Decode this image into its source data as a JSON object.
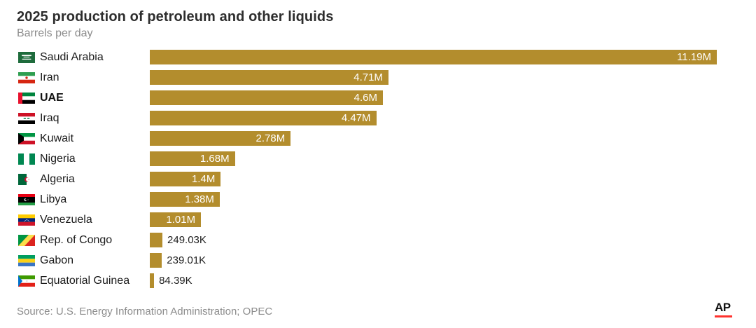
{
  "title": "2025 production of petroleum and other liquids",
  "subtitle": "Barrels per day",
  "source": "Source: U.S. Energy Information Administration; OPEC",
  "logo": {
    "text": "AP",
    "underline_color": "#FF322E"
  },
  "colors": {
    "bar": "#b38d2d",
    "value_label_inside": "#ffffff",
    "value_label_outside": "#1f1f1f",
    "title": "#2d2d2d",
    "subtitle": "#8c8c8c",
    "source": "#8c8c8c"
  },
  "chart_data": {
    "type": "bar",
    "orientation": "horizontal",
    "title": "2025 production of petroleum and other liquids",
    "xlabel": "Barrels per day",
    "ylabel": "",
    "xlim": [
      0,
      11190000
    ],
    "grid": false,
    "legend": false,
    "categories": [
      "Saudi Arabia",
      "Iran",
      "UAE",
      "Iraq",
      "Kuwait",
      "Nigeria",
      "Algeria",
      "Libya",
      "Venezuela",
      "Rep. of Congo",
      "Gabon",
      "Equatorial Guinea"
    ],
    "values": [
      11190000,
      4710000,
      4600000,
      4470000,
      2780000,
      1680000,
      1400000,
      1380000,
      1010000,
      249030,
      239010,
      84390
    ],
    "value_labels": [
      "11.19M",
      "4.71M",
      "4.6M",
      "4.47M",
      "2.78M",
      "1.68M",
      "1.4M",
      "1.38M",
      "1.01M",
      "249.03K",
      "239.01K",
      "84.39K"
    ],
    "emphasized_category": "UAE",
    "rows": [
      {
        "category": "Saudi Arabia",
        "flag": "saudi-arabia",
        "value": 11190000,
        "value_label": "11.19M",
        "emphasized": false
      },
      {
        "category": "Iran",
        "flag": "iran",
        "value": 4710000,
        "value_label": "4.71M",
        "emphasized": false
      },
      {
        "category": "UAE",
        "flag": "uae",
        "value": 4600000,
        "value_label": "4.6M",
        "emphasized": true
      },
      {
        "category": "Iraq",
        "flag": "iraq",
        "value": 4470000,
        "value_label": "4.47M",
        "emphasized": false
      },
      {
        "category": "Kuwait",
        "flag": "kuwait",
        "value": 2780000,
        "value_label": "2.78M",
        "emphasized": false
      },
      {
        "category": "Nigeria",
        "flag": "nigeria",
        "value": 1680000,
        "value_label": "1.68M",
        "emphasized": false
      },
      {
        "category": "Algeria",
        "flag": "algeria",
        "value": 1400000,
        "value_label": "1.4M",
        "emphasized": false
      },
      {
        "category": "Libya",
        "flag": "libya",
        "value": 1380000,
        "value_label": "1.38M",
        "emphasized": false
      },
      {
        "category": "Venezuela",
        "flag": "venezuela",
        "value": 1010000,
        "value_label": "1.01M",
        "emphasized": false
      },
      {
        "category": "Rep. of Congo",
        "flag": "republic-of-congo",
        "value": 249030,
        "value_label": "249.03K",
        "emphasized": false
      },
      {
        "category": "Gabon",
        "flag": "gabon",
        "value": 239010,
        "value_label": "239.01K",
        "emphasized": false
      },
      {
        "category": "Equatorial Guinea",
        "flag": "equatorial-guinea",
        "value": 84390,
        "value_label": "84.39K",
        "emphasized": false
      }
    ]
  }
}
